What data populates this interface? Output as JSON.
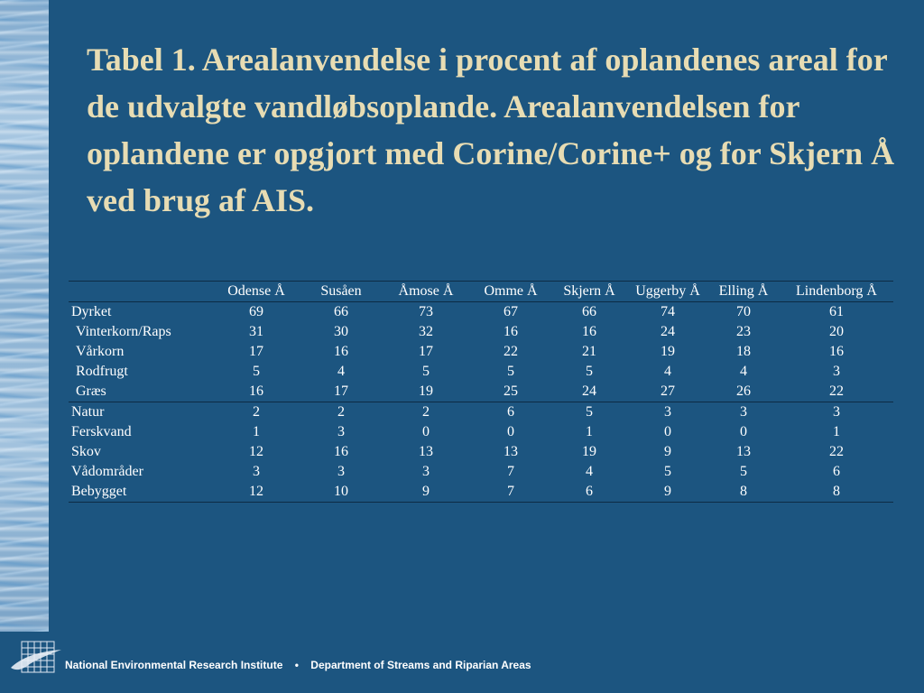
{
  "title": "Tabel 1. Arealanvendelse i procent af oplandenes areal for de udvalgte vandløbsoplande. Arealanvendelsen for oplandene er opgjort med Corine/Corine+ og for Skjern Å ved brug af AIS.",
  "table": {
    "columns": [
      "",
      "Odense Å",
      "Susåen",
      "Åmose Å",
      "Omme Å",
      "Skjern Å",
      "Uggerby Å",
      "Elling Å",
      "Lindenborg Å"
    ],
    "rows": [
      {
        "label": "Dyrket",
        "values": [
          "69",
          "66",
          "73",
          "67",
          "66",
          "74",
          "70",
          "61"
        ]
      },
      {
        "label": "Vinterkorn/Raps",
        "values": [
          "31",
          "30",
          "32",
          "16",
          "16",
          "24",
          "23",
          "20"
        ]
      },
      {
        "label": "Vårkorn",
        "values": [
          "17",
          "16",
          "17",
          "22",
          "21",
          "19",
          "18",
          "16"
        ]
      },
      {
        "label": "Rodfrugt",
        "values": [
          "5",
          "4",
          "5",
          "5",
          "5",
          "4",
          "4",
          "3"
        ]
      },
      {
        "label": "Græs",
        "values": [
          "16",
          "17",
          "19",
          "25",
          "24",
          "27",
          "26",
          "22"
        ]
      },
      {
        "label": "Natur",
        "values": [
          "2",
          "2",
          "2",
          "6",
          "5",
          "3",
          "3",
          "3"
        ]
      },
      {
        "label": "Ferskvand",
        "values": [
          "1",
          "3",
          "0",
          "0",
          "1",
          "0",
          "0",
          "1"
        ]
      },
      {
        "label": "Skov",
        "values": [
          "12",
          "16",
          "13",
          "13",
          "19",
          "9",
          "13",
          "22"
        ]
      },
      {
        "label": "Vådområder",
        "values": [
          "3",
          "3",
          "3",
          "7",
          "4",
          "5",
          "5",
          "6"
        ]
      },
      {
        "label": "Bebygget",
        "values": [
          "12",
          "10",
          "9",
          "7",
          "6",
          "9",
          "8",
          "8"
        ]
      }
    ]
  },
  "footer": {
    "institute": "National Environmental Research Institute",
    "separator": "•",
    "department": "Department of Streams and Riparian Areas"
  },
  "colors": {
    "background": "#1c5580",
    "title": "#e7dcb3",
    "text": "#ffffff"
  },
  "icons": {
    "footer_logo": "bird-grid-logo-icon"
  }
}
